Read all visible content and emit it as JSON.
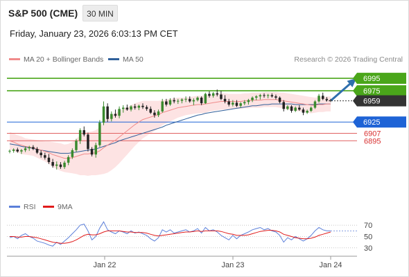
{
  "header": {
    "title": "S&P 500 (CME)",
    "timeframe": "30 MIN",
    "datetime": "Friday, January 23, 2026 6:03:13 PM CET"
  },
  "legend": {
    "main": [
      {
        "label": "MA 20 + Bollinger Bands",
        "color": "#f08a8a"
      },
      {
        "label": "MA 50",
        "color": "#2f5f9a"
      }
    ],
    "credit": "Research © 2026 Trading Central",
    "rsi": [
      {
        "label": "RSI",
        "color": "#5b7fd9"
      },
      {
        "label": "9MA",
        "color": "#e01b1b"
      }
    ]
  },
  "colors": {
    "up": "#3a8a2e",
    "down": "#222222",
    "resistance": "#4aa61a",
    "pivot": "#1e63d6",
    "support": "#e06060",
    "current": "#333333",
    "band_fill": "#fde3e3",
    "arrow": "#2f6fad"
  },
  "chart_data": [
    {
      "type": "candlestick",
      "name": "price",
      "xlabels": [
        "Jan 22",
        "Jan 23",
        "Jan 24"
      ],
      "ylim": [
        6830,
        7015
      ],
      "levels": [
        {
          "value": 6995,
          "label": "6995",
          "kind": "resistance"
        },
        {
          "value": 6975,
          "label": "6975",
          "kind": "resistance"
        },
        {
          "value": 6959,
          "label": "6959",
          "kind": "current"
        },
        {
          "value": 6925,
          "label": "6925",
          "kind": "pivot"
        },
        {
          "value": 6907,
          "label": "6907",
          "kind": "support"
        },
        {
          "value": 6895,
          "label": "6895",
          "kind": "support"
        }
      ],
      "candles": [
        [
          6878,
          6881,
          6875,
          6879
        ],
        [
          6879,
          6883,
          6876,
          6881
        ],
        [
          6881,
          6884,
          6876,
          6878
        ],
        [
          6878,
          6882,
          6874,
          6880
        ],
        [
          6880,
          6886,
          6877,
          6883
        ],
        [
          6883,
          6887,
          6879,
          6885
        ],
        [
          6885,
          6888,
          6880,
          6882
        ],
        [
          6882,
          6885,
          6874,
          6876
        ],
        [
          6876,
          6880,
          6868,
          6872
        ],
        [
          6872,
          6876,
          6865,
          6868
        ],
        [
          6868,
          6874,
          6858,
          6861
        ],
        [
          6861,
          6866,
          6852,
          6855
        ],
        [
          6855,
          6862,
          6849,
          6857
        ],
        [
          6857,
          6861,
          6850,
          6853
        ],
        [
          6853,
          6863,
          6850,
          6860
        ],
        [
          6860,
          6872,
          6856,
          6869
        ],
        [
          6869,
          6883,
          6866,
          6880
        ],
        [
          6880,
          6898,
          6877,
          6895
        ],
        [
          6895,
          6915,
          6890,
          6912
        ],
        [
          6912,
          6918,
          6902,
          6905
        ],
        [
          6905,
          6908,
          6878,
          6882
        ],
        [
          6882,
          6885,
          6870,
          6873
        ],
        [
          6873,
          6892,
          6868,
          6888
        ],
        [
          6888,
          6928,
          6885,
          6924
        ],
        [
          6924,
          6958,
          6920,
          6950
        ],
        [
          6950,
          6955,
          6925,
          6930
        ],
        [
          6930,
          6942,
          6926,
          6938
        ],
        [
          6938,
          6945,
          6932,
          6935
        ],
        [
          6935,
          6950,
          6931,
          6946
        ],
        [
          6946,
          6952,
          6940,
          6948
        ],
        [
          6948,
          6953,
          6943,
          6945
        ],
        [
          6945,
          6952,
          6942,
          6950
        ],
        [
          6950,
          6954,
          6945,
          6948
        ],
        [
          6948,
          6953,
          6944,
          6951
        ],
        [
          6951,
          6955,
          6946,
          6949
        ],
        [
          6949,
          6952,
          6943,
          6946
        ],
        [
          6946,
          6950,
          6938,
          6940
        ],
        [
          6940,
          6944,
          6932,
          6936
        ],
        [
          6936,
          6945,
          6933,
          6942
        ],
        [
          6942,
          6962,
          6940,
          6958
        ],
        [
          6958,
          6962,
          6950,
          6953
        ],
        [
          6953,
          6963,
          6951,
          6960
        ],
        [
          6960,
          6964,
          6955,
          6958
        ],
        [
          6958,
          6962,
          6954,
          6959
        ],
        [
          6959,
          6963,
          6955,
          6961
        ],
        [
          6961,
          6966,
          6957,
          6962
        ],
        [
          6962,
          6966,
          6956,
          6958
        ],
        [
          6958,
          6963,
          6952,
          6960
        ],
        [
          6960,
          6966,
          6958,
          6964
        ],
        [
          6964,
          6966,
          6952,
          6955
        ],
        [
          6955,
          6972,
          6954,
          6970
        ],
        [
          6970,
          6974,
          6964,
          6967
        ],
        [
          6967,
          6973,
          6964,
          6971
        ],
        [
          6971,
          6977,
          6966,
          6969
        ],
        [
          6969,
          6975,
          6960,
          6962
        ],
        [
          6962,
          6968,
          6955,
          6958
        ],
        [
          6958,
          6962,
          6950,
          6953
        ],
        [
          6953,
          6960,
          6950,
          6956
        ],
        [
          6956,
          6960,
          6949,
          6951
        ],
        [
          6951,
          6957,
          6948,
          6955
        ],
        [
          6955,
          6960,
          6952,
          6957
        ],
        [
          6957,
          6962,
          6953,
          6960
        ],
        [
          6960,
          6966,
          6957,
          6964
        ],
        [
          6964,
          6968,
          6960,
          6966
        ],
        [
          6966,
          6970,
          6961,
          6968
        ],
        [
          6968,
          6971,
          6964,
          6967
        ],
        [
          6967,
          6970,
          6963,
          6968
        ],
        [
          6968,
          6971,
          6964,
          6966
        ],
        [
          6966,
          6969,
          6961,
          6964
        ],
        [
          6964,
          6966,
          6955,
          6957
        ],
        [
          6957,
          6960,
          6942,
          6946
        ],
        [
          6946,
          6952,
          6944,
          6950
        ],
        [
          6950,
          6952,
          6940,
          6943
        ],
        [
          6943,
          6950,
          6941,
          6948
        ],
        [
          6948,
          6952,
          6943,
          6945
        ],
        [
          6945,
          6948,
          6936,
          6940
        ],
        [
          6940,
          6945,
          6938,
          6943
        ],
        [
          6943,
          6950,
          6941,
          6948
        ],
        [
          6948,
          6960,
          6946,
          6958
        ],
        [
          6958,
          6970,
          6956,
          6967
        ],
        [
          6967,
          6972,
          6960,
          6962
        ],
        [
          6962,
          6965,
          6958,
          6960
        ],
        [
          6960,
          6962,
          6957,
          6959
        ]
      ],
      "ma20": [
        6895,
        6893,
        6890,
        6888,
        6886,
        6885,
        6884,
        6882,
        6880,
        6878,
        6876,
        6873,
        6871,
        6869,
        6867,
        6867,
        6868,
        6870,
        6872,
        6874,
        6874,
        6875,
        6876,
        6879,
        6884,
        6888,
        6892,
        6896,
        6901,
        6906,
        6911,
        6916,
        6921,
        6925,
        6929,
        6931,
        6933,
        6935,
        6937,
        6940,
        6942,
        6944,
        6946,
        6948,
        6949,
        6950,
        6951,
        6952,
        6953,
        6953,
        6954,
        6955,
        6956,
        6957,
        6958,
        6958,
        6958,
        6958,
        6958,
        6958,
        6959,
        6959,
        6960,
        6960,
        6960,
        6961,
        6961,
        6961,
        6961,
        6960,
        6959,
        6958,
        6957,
        6956,
        6955,
        6954,
        6953,
        6952,
        6952,
        6953,
        6953,
        6954,
        6954
      ],
      "ma50": [
        6890,
        6889,
        6888,
        6886,
        6885,
        6884,
        6883,
        6881,
        6880,
        6879,
        6878,
        6877,
        6876,
        6875,
        6875,
        6875,
        6876,
        6877,
        6878,
        6879,
        6880,
        6881,
        6882,
        6884,
        6886,
        6888,
        6890,
        6892,
        6895,
        6897,
        6899,
        6901,
        6903,
        6905,
        6907,
        6909,
        6911,
        6913,
        6915,
        6917,
        6920,
        6922,
        6924,
        6926,
        6928,
        6930,
        6932,
        6934,
        6936,
        6937,
        6939,
        6940,
        6941,
        6942,
        6943,
        6944,
        6945,
        6946,
        6947,
        6948,
        6949,
        6950,
        6951,
        6951,
        6952,
        6953,
        6953,
        6954,
        6954,
        6954,
        6954,
        6954,
        6954,
        6953,
        6953,
        6953,
        6953,
        6953,
        6953,
        6954,
        6954,
        6954,
        6954
      ],
      "bollinger_width": [
        14,
        14,
        14,
        14,
        13,
        13,
        13,
        14,
        15,
        16,
        18,
        20,
        21,
        22,
        22,
        23,
        25,
        28,
        32,
        34,
        35,
        35,
        36,
        38,
        42,
        44,
        44,
        43,
        42,
        40,
        38,
        36,
        34,
        32,
        30,
        28,
        26,
        24,
        22,
        20,
        19,
        18,
        17,
        16,
        15,
        14,
        14,
        14,
        14,
        14,
        14,
        13,
        13,
        13,
        13,
        13,
        12,
        12,
        12,
        12,
        12,
        12,
        12,
        12,
        12,
        12,
        12,
        12,
        12,
        12,
        13,
        13,
        13,
        13,
        13,
        13,
        13,
        13,
        12,
        12,
        12,
        12,
        12
      ]
    },
    {
      "type": "line",
      "name": "rsi",
      "ticks": [
        "70",
        "50",
        "30"
      ],
      "ylim": [
        20,
        85
      ],
      "series": [
        {
          "name": "RSI",
          "values": [
            48,
            50,
            46,
            52,
            55,
            50,
            47,
            42,
            40,
            38,
            35,
            33,
            40,
            36,
            42,
            48,
            55,
            62,
            70,
            72,
            60,
            44,
            50,
            65,
            76,
            62,
            58,
            55,
            60,
            58,
            55,
            60,
            56,
            58,
            55,
            52,
            46,
            42,
            48,
            62,
            58,
            62,
            56,
            58,
            60,
            62,
            58,
            60,
            64,
            56,
            66,
            60,
            62,
            58,
            52,
            48,
            44,
            52,
            46,
            52,
            55,
            58,
            62,
            64,
            66,
            62,
            64,
            60,
            58,
            52,
            40,
            48,
            44,
            50,
            46,
            42,
            46,
            52,
            60,
            66,
            62,
            60,
            60
          ]
        },
        {
          "name": "9MA",
          "values": [
            50,
            50,
            49,
            49,
            50,
            50,
            49,
            48,
            46,
            44,
            42,
            40,
            39,
            38,
            38,
            39,
            41,
            44,
            48,
            52,
            54,
            53,
            53,
            55,
            58,
            60,
            60,
            60,
            60,
            59,
            58,
            58,
            57,
            57,
            57,
            56,
            54,
            52,
            51,
            52,
            53,
            54,
            55,
            56,
            57,
            58,
            58,
            59,
            60,
            59,
            60,
            60,
            60,
            60,
            59,
            57,
            55,
            54,
            52,
            52,
            52,
            53,
            55,
            57,
            59,
            60,
            61,
            61,
            60,
            58,
            54,
            52,
            50,
            48,
            47,
            46,
            46,
            47,
            49,
            52,
            54,
            56,
            58
          ]
        }
      ]
    }
  ]
}
